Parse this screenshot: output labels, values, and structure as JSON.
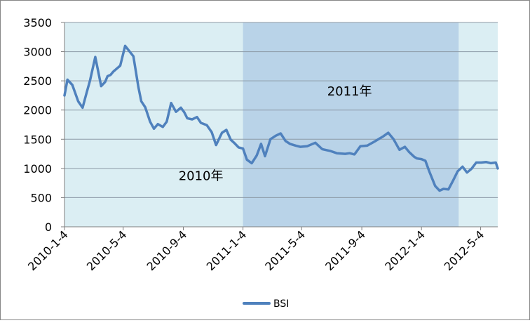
{
  "chart_data": {
    "type": "line",
    "title": "",
    "xlabel": "",
    "ylabel": "",
    "ylim": [
      0,
      3500
    ],
    "y_ticks": [
      0,
      500,
      1000,
      1500,
      2000,
      2500,
      3000,
      3500
    ],
    "x_tick_labels": [
      "2010-1-4",
      "2010-5-4",
      "2010-9-4",
      "2011-1-4",
      "2011-5-4",
      "2011-9-4",
      "2012-1-4",
      "2012-5-4"
    ],
    "x_tick_dates": [
      "2010-01-04",
      "2010-05-04",
      "2010-09-04",
      "2011-01-04",
      "2011-05-04",
      "2011-09-04",
      "2012-01-04",
      "2012-05-04"
    ],
    "xlim": [
      "2010-01-04",
      "2012-06-08"
    ],
    "grid": true,
    "legend_placement": "bottom",
    "colors": {
      "series": "#4f81bd",
      "plot_background": "#dbeef3",
      "shaded_band": "#b9d3e8",
      "gridline": "#8c9aa6",
      "axis": "#7f7f7f"
    },
    "shaded_regions": [
      {
        "start": "2011-01-04",
        "end": "2012-03-20",
        "label": "2011年"
      }
    ],
    "annotations": [
      {
        "text": "2010年",
        "x": "2010-10-10",
        "y": 800
      },
      {
        "text": "2011年",
        "x": "2011-08-10",
        "y": 2250
      }
    ],
    "series": [
      {
        "name": "BSI",
        "x": [
          "2010-01-04",
          "2010-01-10",
          "2010-01-20",
          "2010-02-01",
          "2010-02-10",
          "2010-02-18",
          "2010-02-25",
          "2010-03-08",
          "2010-03-20",
          "2010-03-28",
          "2010-04-02",
          "2010-04-08",
          "2010-04-14",
          "2010-04-28",
          "2010-05-08",
          "2010-05-25",
          "2010-06-04",
          "2010-06-10",
          "2010-06-18",
          "2010-06-28",
          "2010-07-06",
          "2010-07-14",
          "2010-07-24",
          "2010-08-01",
          "2010-08-10",
          "2010-08-20",
          "2010-08-30",
          "2010-09-06",
          "2010-09-12",
          "2010-09-22",
          "2010-10-02",
          "2010-10-10",
          "2010-10-22",
          "2010-11-01",
          "2010-11-10",
          "2010-11-22",
          "2010-12-01",
          "2010-12-10",
          "2010-12-18",
          "2010-12-26",
          "2011-01-04",
          "2011-01-12",
          "2011-01-22",
          "2011-02-01",
          "2011-02-10",
          "2011-02-18",
          "2011-03-01",
          "2011-03-12",
          "2011-03-22",
          "2011-04-01",
          "2011-04-10",
          "2011-04-22",
          "2011-05-01",
          "2011-05-15",
          "2011-06-01",
          "2011-06-15",
          "2011-07-01",
          "2011-07-15",
          "2011-08-01",
          "2011-08-10",
          "2011-08-20",
          "2011-09-01",
          "2011-09-15",
          "2011-09-30",
          "2011-10-08",
          "2011-10-18",
          "2011-10-28",
          "2011-11-08",
          "2011-11-20",
          "2011-12-01",
          "2011-12-10",
          "2011-12-20",
          "2011-12-26",
          "2012-01-04",
          "2012-01-12",
          "2012-01-20",
          "2012-02-01",
          "2012-02-10",
          "2012-02-18",
          "2012-02-28",
          "2012-03-08",
          "2012-03-18",
          "2012-03-28",
          "2012-04-06",
          "2012-04-15",
          "2012-04-25",
          "2012-05-05",
          "2012-05-15",
          "2012-05-25",
          "2012-06-04",
          "2012-06-08"
        ],
        "values": [
          2250,
          2520,
          2430,
          2150,
          2040,
          2290,
          2500,
          2910,
          2410,
          2480,
          2580,
          2600,
          2660,
          2760,
          3100,
          2920,
          2400,
          2150,
          2050,
          1800,
          1680,
          1760,
          1710,
          1800,
          2120,
          1970,
          2040,
          1960,
          1860,
          1840,
          1880,
          1780,
          1740,
          1620,
          1400,
          1610,
          1660,
          1490,
          1430,
          1360,
          1340,
          1150,
          1090,
          1220,
          1420,
          1210,
          1500,
          1560,
          1600,
          1470,
          1420,
          1390,
          1370,
          1380,
          1440,
          1330,
          1300,
          1260,
          1250,
          1260,
          1240,
          1380,
          1390,
          1460,
          1500,
          1550,
          1610,
          1500,
          1320,
          1370,
          1280,
          1200,
          1170,
          1160,
          1130,
          950,
          700,
          620,
          650,
          640,
          780,
          950,
          1030,
          930,
          990,
          1100,
          1100,
          1110,
          1090,
          1100,
          1000
        ]
      }
    ]
  }
}
